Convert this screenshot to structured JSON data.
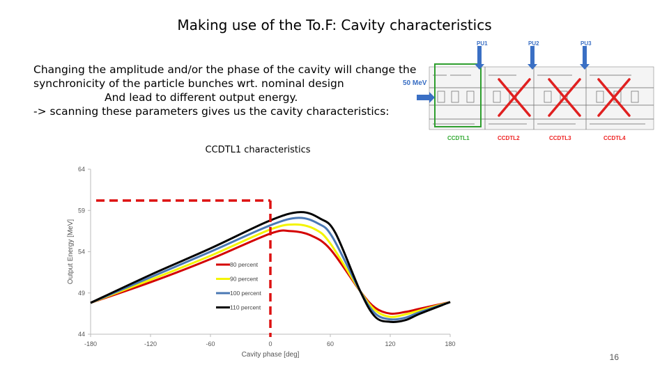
{
  "slide": {
    "title": "Making use of the To.F: Cavity characteristics",
    "text_lines": [
      "Changing the amplitude and/or the phase of the cavity will change the",
      "synchronicity of the particle bunches wrt. nominal design",
      "And lead to different output energy.",
      "-> scanning these parameters gives us the cavity characteristics:"
    ],
    "page_number": "16"
  },
  "layout_image": {
    "energy_label": "50 MeV",
    "pu_labels": [
      "PU1",
      "PU2",
      "PU3"
    ],
    "ccdtl_labels": [
      "CCDTL1",
      "CCDTL2",
      "CCDTL3",
      "CCDTL4"
    ],
    "colors": {
      "pu": "#3a6fc4",
      "cross": "#e02020",
      "ccdtl1": "#2e9e2e",
      "ccdtl_other": "#e02020",
      "highlight_box": "#2e9e2e"
    }
  },
  "chart_data": {
    "type": "line",
    "title": "CCDTL1 characteristics",
    "xlabel": "Cavity phase [deg]",
    "ylabel": "Output Energy [MeV]",
    "xlim": [
      -180,
      180
    ],
    "ylim": [
      44,
      64
    ],
    "xticks": [
      "-180",
      "-120",
      "-60",
      "0",
      "60",
      "120",
      "180"
    ],
    "yticks": [
      "44",
      "49",
      "54",
      "59",
      "64"
    ],
    "legend_position": "center",
    "series": [
      {
        "name": "80 percent",
        "color": "#d40000",
        "x": [
          -180,
          -120,
          -60,
          0,
          20,
          40,
          60,
          90,
          105,
          120,
          135,
          150,
          180
        ],
        "y": [
          47.8,
          50.3,
          53.1,
          56.2,
          56.5,
          56.0,
          54.3,
          49.2,
          47.2,
          46.5,
          46.7,
          47.1,
          47.9
        ]
      },
      {
        "name": "90 percent",
        "color": "#f4f400",
        "x": [
          -180,
          -120,
          -60,
          0,
          25,
          45,
          60,
          90,
          105,
          120,
          135,
          150,
          180
        ],
        "y": [
          47.8,
          50.6,
          53.5,
          56.7,
          57.3,
          56.7,
          55.0,
          49.2,
          46.9,
          46.1,
          46.4,
          46.9,
          47.9
        ]
      },
      {
        "name": "100 percent",
        "color": "#4a78b4",
        "x": [
          -180,
          -120,
          -60,
          0,
          28,
          48,
          62,
          90,
          105,
          120,
          135,
          150,
          180
        ],
        "y": [
          47.8,
          50.9,
          54.0,
          57.2,
          58.1,
          57.4,
          55.8,
          49.2,
          46.5,
          45.8,
          46.0,
          46.7,
          47.9
        ]
      },
      {
        "name": "110 percent",
        "color": "#000000",
        "x": [
          -180,
          -120,
          -60,
          0,
          30,
          50,
          65,
          90,
          105,
          120,
          135,
          150,
          180
        ],
        "y": [
          47.8,
          51.2,
          54.4,
          57.8,
          58.8,
          58.0,
          56.3,
          49.2,
          46.1,
          45.5,
          45.7,
          46.5,
          47.9
        ]
      }
    ],
    "annotation": {
      "type": "dashed-crosshair",
      "color": "#dd1111",
      "x": 0,
      "y": 60.2
    }
  }
}
